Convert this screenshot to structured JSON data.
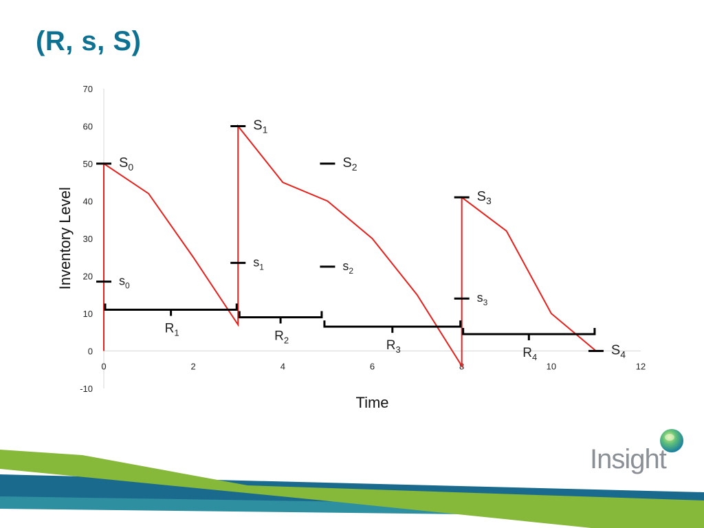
{
  "slide": {
    "title": "(R, s, S)",
    "title_color": "#0e7192"
  },
  "logo": {
    "text": "Insight",
    "icon": "globe-icon"
  },
  "colors": {
    "line": "#e8201b",
    "markers": "#000000",
    "axis_text": "#222222",
    "band_blue": "#1a6a8e",
    "band_green": "#86b83a",
    "band_teal": "#2e8fa0"
  },
  "chart_data": {
    "type": "line",
    "title": "",
    "xlabel": "Time",
    "ylabel": "Inventory Level",
    "xlim": [
      0,
      12
    ],
    "ylim": [
      -10,
      70
    ],
    "x_ticks": [
      0,
      2,
      4,
      6,
      8,
      10,
      12
    ],
    "x_tick_labels": [
      "0",
      "2",
      "4",
      "6",
      "8",
      "10",
      "12"
    ],
    "y_ticks": [
      -10,
      0,
      10,
      20,
      30,
      40,
      50,
      60,
      70
    ],
    "y_tick_labels": [
      "-10",
      "0",
      "10",
      "20",
      "30",
      "40",
      "50",
      "60",
      "70"
    ],
    "grid": false,
    "series": [
      {
        "values": [
          [
            0,
            0
          ],
          [
            0,
            50
          ],
          [
            1,
            42
          ],
          [
            2,
            25
          ],
          [
            3,
            7
          ],
          [
            3,
            60
          ],
          [
            4,
            45
          ],
          [
            5,
            40
          ],
          [
            6,
            30
          ],
          [
            7,
            15
          ],
          [
            8,
            -4
          ],
          [
            8,
            41
          ],
          [
            9,
            32
          ],
          [
            10,
            10
          ],
          [
            11,
            0
          ]
        ]
      }
    ],
    "level_markers": [
      {
        "base": "S",
        "sub": "0",
        "x": 0,
        "y": 50
      },
      {
        "base": "S",
        "sub": "1",
        "x": 3,
        "y": 60
      },
      {
        "base": "S",
        "sub": "2",
        "x": 5,
        "y": 50
      },
      {
        "base": "S",
        "sub": "3",
        "x": 8,
        "y": 41
      },
      {
        "base": "S",
        "sub": "4",
        "x": 11,
        "y": 0
      },
      {
        "base": "s",
        "sub": "0",
        "x": 0,
        "y": 18.5
      },
      {
        "base": "s",
        "sub": "1",
        "x": 3,
        "y": 23.5
      },
      {
        "base": "s",
        "sub": "2",
        "x": 5,
        "y": 22.5
      },
      {
        "base": "s",
        "sub": "3",
        "x": 8,
        "y": 14
      }
    ],
    "review_periods": [
      {
        "base": "R",
        "sub": "1",
        "x_start": 0,
        "x_end": 3,
        "y": 11
      },
      {
        "base": "R",
        "sub": "2",
        "x_start": 3,
        "x_end": 4.9,
        "y": 9
      },
      {
        "base": "R",
        "sub": "3",
        "x_start": 4.9,
        "x_end": 8,
        "y": 6.5
      },
      {
        "base": "R",
        "sub": "4",
        "x_start": 8,
        "x_end": 11,
        "y": 4.5
      }
    ]
  }
}
